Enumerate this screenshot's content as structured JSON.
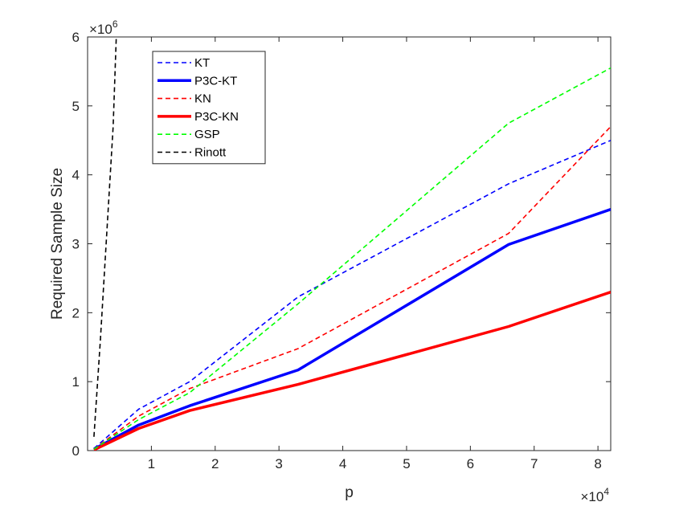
{
  "chart_data": {
    "type": "line",
    "title": "",
    "xlabel": "p",
    "ylabel": "Required Sample Size",
    "xlim": [
      0,
      82000
    ],
    "ylim": [
      0,
      6000000
    ],
    "x_ticks": [
      10000,
      20000,
      30000,
      40000,
      50000,
      60000,
      70000,
      80000
    ],
    "x_tick_labels": [
      "1",
      "2",
      "3",
      "4",
      "5",
      "6",
      "7",
      "8"
    ],
    "y_ticks": [
      0,
      1000000,
      2000000,
      3000000,
      4000000,
      5000000,
      6000000
    ],
    "y_tick_labels": [
      "0",
      "1",
      "2",
      "3",
      "4",
      "5",
      "6"
    ],
    "x_multiplier": "×10",
    "x_exponent": "4",
    "y_multiplier": "×10",
    "y_exponent": "6",
    "grid": false,
    "legend_position": "top-left",
    "series": [
      {
        "name": "KT",
        "color": "#0000ff",
        "style": "dashed",
        "width": "thin",
        "x": [
          1000,
          8000,
          16000,
          33000,
          66000,
          82000
        ],
        "y": [
          30000,
          600000,
          1000000,
          2230000,
          3870000,
          4500000
        ]
      },
      {
        "name": "P3C-KT",
        "color": "#0000ff",
        "style": "solid",
        "width": "thick",
        "x": [
          1000,
          8000,
          16000,
          33000,
          66000,
          82000
        ],
        "y": [
          20000,
          370000,
          650000,
          1170000,
          2990000,
          3500000
        ]
      },
      {
        "name": "KN",
        "color": "#ff0000",
        "style": "dashed",
        "width": "thin",
        "x": [
          1000,
          8000,
          16000,
          33000,
          66000,
          82000
        ],
        "y": [
          20000,
          500000,
          900000,
          1480000,
          3150000,
          4700000
        ]
      },
      {
        "name": "P3C-KN",
        "color": "#ff0000",
        "style": "solid",
        "width": "thick",
        "x": [
          1000,
          8000,
          16000,
          33000,
          66000,
          82000
        ],
        "y": [
          10000,
          320000,
          580000,
          960000,
          1800000,
          2300000
        ]
      },
      {
        "name": "GSP",
        "color": "#00ff00",
        "style": "dashed",
        "width": "thin",
        "x": [
          1000,
          8000,
          16000,
          33000,
          66000,
          82000
        ],
        "y": [
          20000,
          450000,
          840000,
          2130000,
          4750000,
          5550000
        ]
      },
      {
        "name": "Rinott",
        "color": "#000000",
        "style": "dashed",
        "width": "thin",
        "x": [
          1000,
          2000,
          4000,
          4500
        ],
        "y": [
          200000,
          1600000,
          4700000,
          6000000
        ]
      }
    ]
  }
}
